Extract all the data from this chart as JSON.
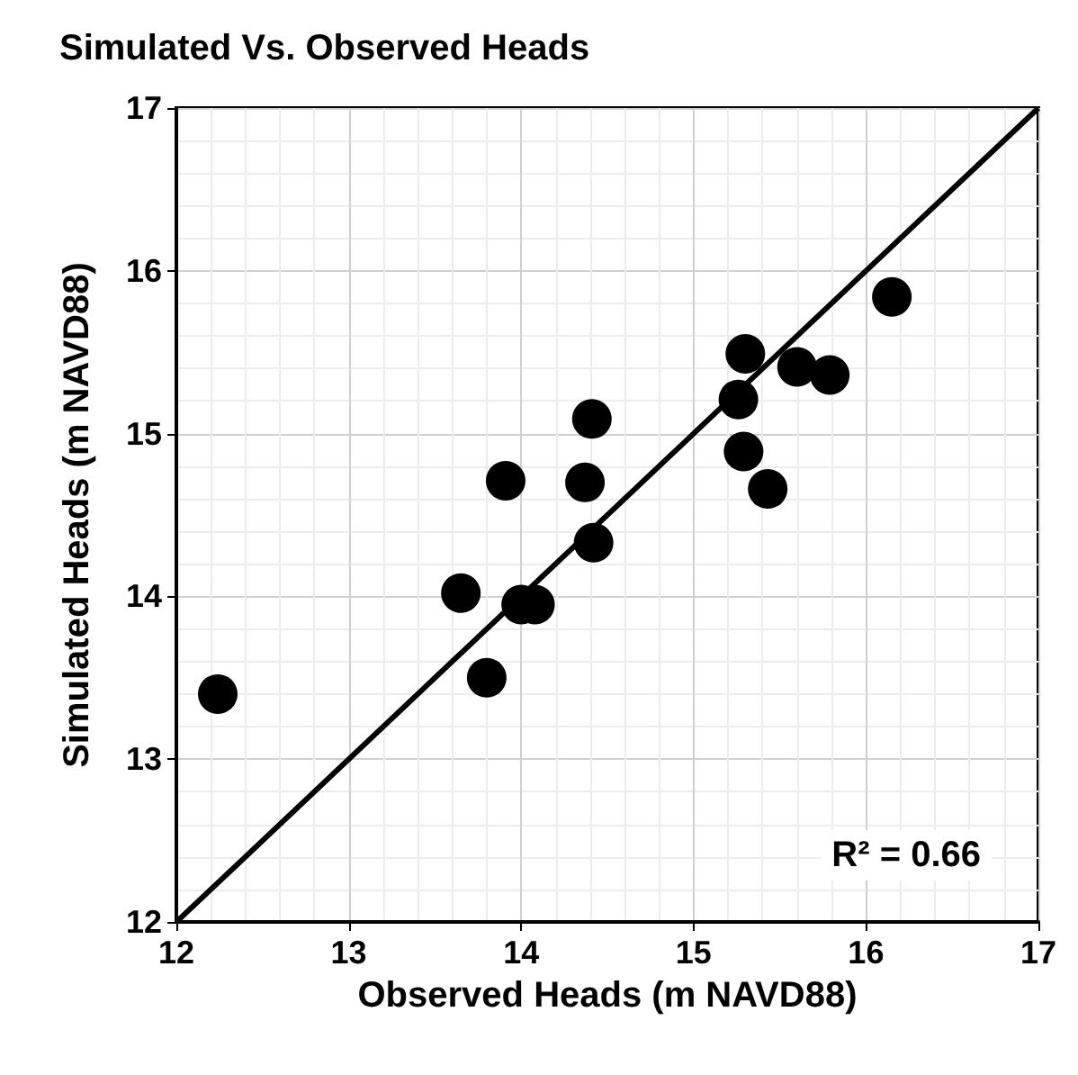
{
  "chart_data": {
    "type": "scatter",
    "title": "Simulated Vs. Observed Heads",
    "xlabel": "Observed Heads (m NAVD88)",
    "ylabel": "Simulated Heads (m NAVD88)",
    "xlim": [
      12,
      17
    ],
    "ylim": [
      12,
      17
    ],
    "xticks": [
      12,
      13,
      14,
      15,
      16,
      17
    ],
    "yticks": [
      12,
      13,
      14,
      15,
      16,
      17
    ],
    "grid": true,
    "series": [
      {
        "marker": "circle",
        "color": "#000000",
        "x": [
          12.24,
          13.65,
          13.8,
          13.91,
          14.0,
          14.08,
          14.37,
          14.41,
          14.42,
          15.26,
          15.3,
          15.29,
          15.43,
          15.6,
          15.79,
          16.15
        ],
        "values": [
          13.4,
          14.02,
          13.5,
          14.71,
          13.95,
          13.95,
          14.7,
          15.09,
          14.33,
          15.21,
          15.49,
          14.89,
          14.66,
          15.41,
          15.36,
          15.84
        ]
      },
      {
        "type": "line",
        "color": "#000000",
        "x": [
          12,
          17
        ],
        "values": [
          12,
          17
        ]
      }
    ],
    "annotations": [
      "R² = 0.66"
    ]
  }
}
